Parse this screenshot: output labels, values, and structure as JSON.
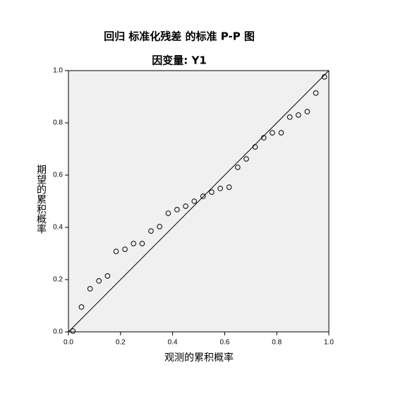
{
  "chart_data": {
    "type": "scatter",
    "title": "回归 标准化残差 的标准 P-P 图",
    "subtitle": "因变量: Y1",
    "xlabel": "观测的累积概率",
    "ylabel": "期望的累积概率",
    "x": [
      0.017,
      0.05,
      0.083,
      0.117,
      0.15,
      0.183,
      0.217,
      0.25,
      0.283,
      0.317,
      0.35,
      0.383,
      0.417,
      0.45,
      0.483,
      0.517,
      0.55,
      0.583,
      0.617,
      0.65,
      0.683,
      0.717,
      0.75,
      0.783,
      0.817,
      0.85,
      0.883,
      0.917,
      0.95,
      0.983
    ],
    "values": [
      0.003,
      0.095,
      0.165,
      0.195,
      0.214,
      0.308,
      0.316,
      0.338,
      0.338,
      0.386,
      0.403,
      0.454,
      0.468,
      0.481,
      0.5,
      0.519,
      0.535,
      0.549,
      0.554,
      0.63,
      0.662,
      0.708,
      0.743,
      0.762,
      0.762,
      0.822,
      0.83,
      0.843,
      0.914,
      0.976
    ],
    "color": "#000000",
    "xlim": [
      0,
      1
    ],
    "ylim": [
      0,
      1
    ],
    "xticks": [
      {
        "value": 0,
        "label": "0.0"
      },
      0.2,
      0.4,
      0.6,
      0.8,
      {
        "value": 1,
        "label": "1.0"
      }
    ],
    "yticks": [
      {
        "value": 0,
        "label": "0.0"
      },
      0.2,
      0.4,
      0.6,
      0.8,
      {
        "value": 1,
        "label": "1.0"
      }
    ],
    "grid": false
  }
}
